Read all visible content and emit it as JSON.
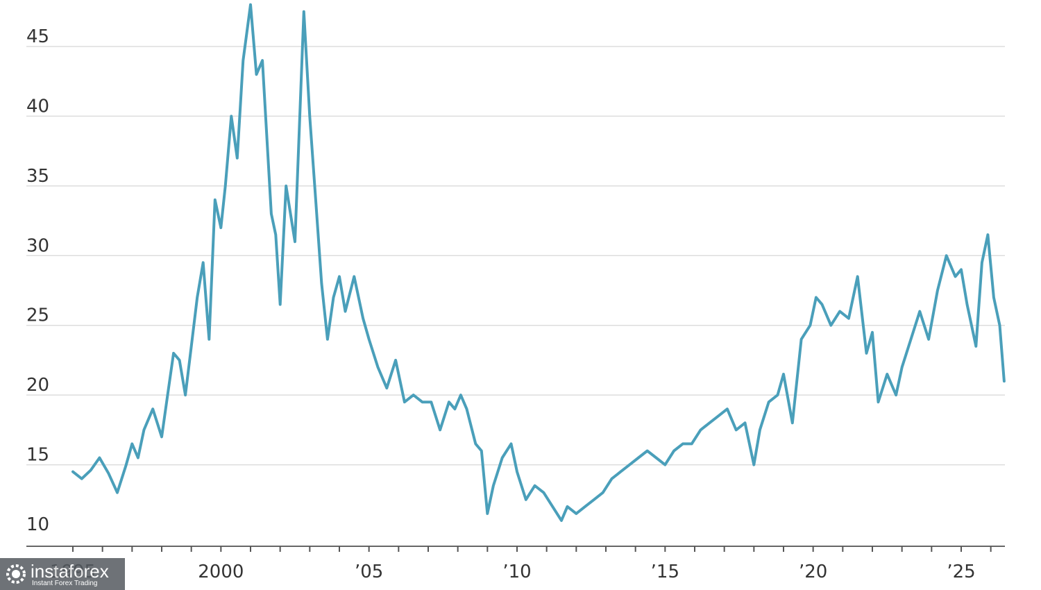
{
  "chart_data": {
    "type": "line",
    "title": "",
    "xlabel": "",
    "ylabel": "",
    "xlim": [
      1995,
      2026.5
    ],
    "ylim": [
      10,
      48
    ],
    "yticks": [
      10,
      15,
      20,
      25,
      30,
      35,
      40,
      45
    ],
    "ytick_labels": [
      "10",
      "15",
      "20",
      "25",
      "30",
      "35",
      "40",
      "45"
    ],
    "xticks_labeled": [
      {
        "x": 1995,
        "label": "1995"
      },
      {
        "x": 2000,
        "label": "2000"
      },
      {
        "x": 2005,
        "label": "’05"
      },
      {
        "x": 2010,
        "label": "’10"
      },
      {
        "x": 2015,
        "label": "’15"
      },
      {
        "x": 2020,
        "label": "’20"
      },
      {
        "x": 2025,
        "label": "’25"
      }
    ],
    "grid": true,
    "line_color": "#4a9fba",
    "series": [
      {
        "x": [
          1995.0,
          1995.3,
          1995.6,
          1995.9,
          1996.2,
          1996.5,
          1996.8,
          1997.0,
          1997.2,
          1997.4,
          1997.7,
          1998.0,
          1998.2,
          1998.4,
          1998.6,
          1998.8,
          1999.0,
          1999.2,
          1999.4,
          1999.6,
          1999.8,
          2000.0,
          2000.15,
          2000.35,
          2000.55,
          2000.75,
          2001.0,
          2001.2,
          2001.4,
          2001.7,
          2001.85,
          2002.0,
          2002.2,
          2002.5,
          2002.8,
          2003.0,
          2003.2,
          2003.4,
          2003.6,
          2003.8,
          2004.0,
          2004.2,
          2004.5,
          2004.8,
          2005.0,
          2005.3,
          2005.6,
          2005.9,
          2006.2,
          2006.5,
          2006.8,
          2007.1,
          2007.4,
          2007.7,
          2007.9,
          2008.1,
          2008.3,
          2008.6,
          2008.8,
          2009.0,
          2009.2,
          2009.5,
          2009.8,
          2010.0,
          2010.3,
          2010.6,
          2010.9,
          2011.2,
          2011.5,
          2011.7,
          2012.0,
          2012.3,
          2012.6,
          2012.9,
          2013.2,
          2013.5,
          2013.8,
          2014.1,
          2014.4,
          2014.7,
          2015.0,
          2015.3,
          2015.6,
          2015.9,
          2016.2,
          2016.5,
          2016.8,
          2017.1,
          2017.4,
          2017.7,
          2018.0,
          2018.2,
          2018.5,
          2018.8,
          2019.0,
          2019.3,
          2019.6,
          2019.9,
          2020.1,
          2020.3,
          2020.6,
          2020.9,
          2021.2,
          2021.5,
          2021.8,
          2022.0,
          2022.2,
          2022.5,
          2022.8,
          2023.0,
          2023.3,
          2023.6,
          2023.9,
          2024.2,
          2024.5,
          2024.8,
          2025.0,
          2025.2,
          2025.5,
          2025.7,
          2025.9,
          2026.1,
          2026.3,
          2026.45
        ],
        "values": [
          14.5,
          14.0,
          14.6,
          15.5,
          14.4,
          13.0,
          15.0,
          16.5,
          15.5,
          17.5,
          19.0,
          17.0,
          20.0,
          23.0,
          22.5,
          20.0,
          23.5,
          27.0,
          29.5,
          24.0,
          34.0,
          32.0,
          35.0,
          40.0,
          37.0,
          44.0,
          48.0,
          43.0,
          44.0,
          33.0,
          31.5,
          26.5,
          35.0,
          31.0,
          47.5,
          40.0,
          34.0,
          28.0,
          24.0,
          27.0,
          28.5,
          26.0,
          28.5,
          25.5,
          24.0,
          22.0,
          20.5,
          22.5,
          19.5,
          20.0,
          19.5,
          19.5,
          17.5,
          19.5,
          19.0,
          20.0,
          19.0,
          16.5,
          16.0,
          11.5,
          13.5,
          15.5,
          16.5,
          14.5,
          12.5,
          13.5,
          13.0,
          12.0,
          11.0,
          12.0,
          11.5,
          12.0,
          12.5,
          13.0,
          14.0,
          14.5,
          15.0,
          15.5,
          16.0,
          15.5,
          15.0,
          16.0,
          16.5,
          16.5,
          17.5,
          18.0,
          18.5,
          19.0,
          17.5,
          18.0,
          15.0,
          17.5,
          19.5,
          20.0,
          21.5,
          18.0,
          24.0,
          25.0,
          27.0,
          26.5,
          25.0,
          26.0,
          25.5,
          28.5,
          23.0,
          24.5,
          19.5,
          21.5,
          20.0,
          22.0,
          24.0,
          26.0,
          24.0,
          27.5,
          30.0,
          28.5,
          29.0,
          26.5,
          23.5,
          29.5,
          31.5,
          27.0,
          25.0,
          21.0
        ]
      }
    ]
  },
  "watermark": {
    "brand": "instaforex",
    "tagline": "Instant Forex Trading"
  }
}
